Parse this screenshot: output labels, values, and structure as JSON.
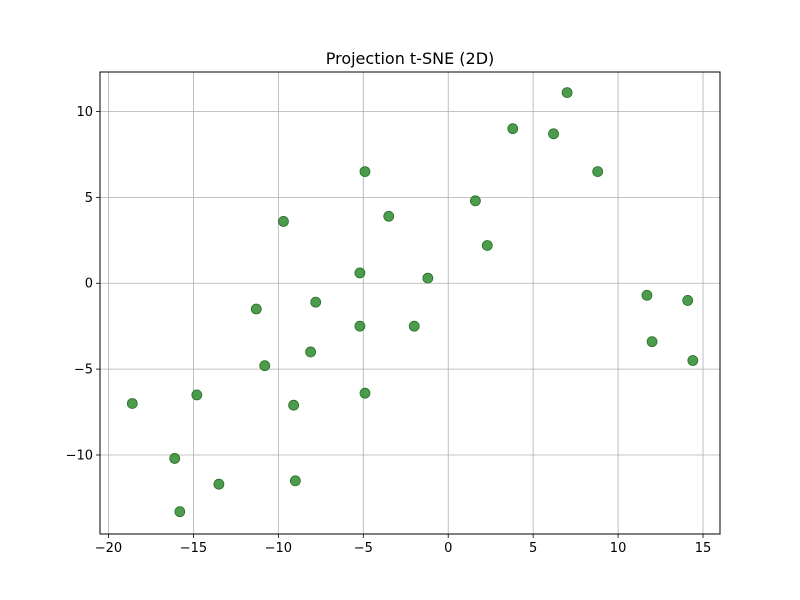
{
  "chart_data": {
    "type": "scatter",
    "title": "Projection t-SNE (2D)",
    "xlabel": "",
    "ylabel": "",
    "xlim": [
      -20.5,
      16.0
    ],
    "ylim": [
      -14.6,
      12.3
    ],
    "xticks": [
      -20,
      -15,
      -10,
      -5,
      0,
      5,
      10,
      15
    ],
    "yticks": [
      -10,
      -5,
      0,
      5,
      10
    ],
    "xtick_labels": [
      "−20",
      "−15",
      "−10",
      "−5",
      "0",
      "5",
      "10",
      "15"
    ],
    "ytick_labels": [
      "−10",
      "−5",
      "0",
      "5",
      "10"
    ],
    "grid": true,
    "marker_color": "#2e8b2e",
    "points": [
      {
        "x": 7.0,
        "y": 11.1
      },
      {
        "x": 3.8,
        "y": 9.0
      },
      {
        "x": 6.2,
        "y": 8.7
      },
      {
        "x": 8.8,
        "y": 6.5
      },
      {
        "x": -4.9,
        "y": 6.5
      },
      {
        "x": 1.6,
        "y": 4.8
      },
      {
        "x": -3.5,
        "y": 3.9
      },
      {
        "x": -9.7,
        "y": 3.6
      },
      {
        "x": 2.3,
        "y": 2.2
      },
      {
        "x": -5.2,
        "y": 0.6
      },
      {
        "x": -1.2,
        "y": 0.3
      },
      {
        "x": 11.7,
        "y": -0.7
      },
      {
        "x": 14.1,
        "y": -1.0
      },
      {
        "x": -7.8,
        "y": -1.1
      },
      {
        "x": -11.3,
        "y": -1.5
      },
      {
        "x": -5.2,
        "y": -2.5
      },
      {
        "x": -2.0,
        "y": -2.5
      },
      {
        "x": 12.0,
        "y": -3.4
      },
      {
        "x": -8.1,
        "y": -4.0
      },
      {
        "x": 14.4,
        "y": -4.5
      },
      {
        "x": -10.8,
        "y": -4.8
      },
      {
        "x": -4.9,
        "y": -6.4
      },
      {
        "x": -14.8,
        "y": -6.5
      },
      {
        "x": -18.6,
        "y": -7.0
      },
      {
        "x": -9.1,
        "y": -7.1
      },
      {
        "x": -16.1,
        "y": -10.2
      },
      {
        "x": -9.0,
        "y": -11.5
      },
      {
        "x": -13.5,
        "y": -11.7
      },
      {
        "x": -15.8,
        "y": -13.3
      }
    ]
  }
}
